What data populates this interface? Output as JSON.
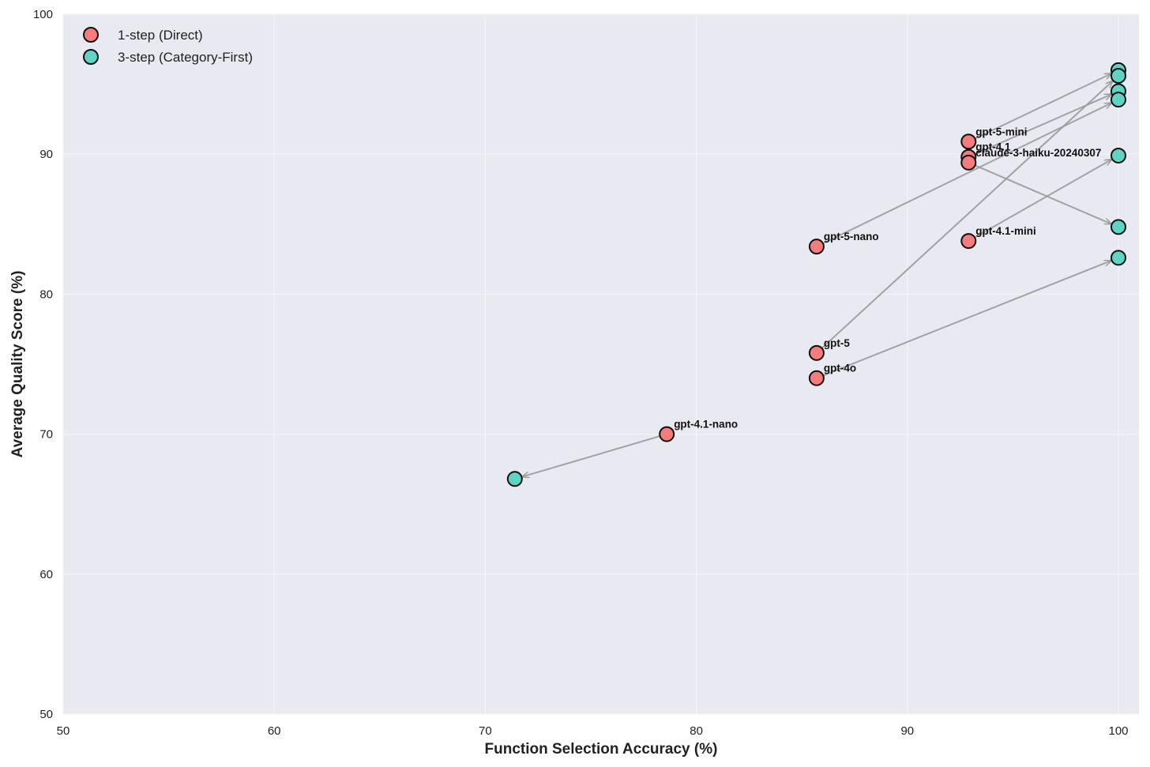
{
  "chart_data": {
    "type": "scatter",
    "title": "",
    "xlabel": "Function Selection Accuracy (%)",
    "ylabel": "Average Quality Score (%)",
    "xlim": [
      50,
      100
    ],
    "ylim": [
      50,
      100
    ],
    "xticks": [
      50,
      60,
      70,
      80,
      90,
      100
    ],
    "yticks": [
      50,
      60,
      70,
      80,
      90,
      100
    ],
    "grid": true,
    "legend_position": "upper left",
    "legend": [
      {
        "label": "1-step (Direct)",
        "color": "#f47c7c"
      },
      {
        "label": "3-step (Category-First)",
        "color": "#5fd3c4"
      }
    ],
    "series": [
      {
        "name": "1-step (Direct)",
        "color": "#f47c7c",
        "points": [
          {
            "model": "gpt-5-mini",
            "x": 92.9,
            "y": 90.9
          },
          {
            "model": "gpt-4.1",
            "x": 92.9,
            "y": 89.8
          },
          {
            "model": "claude-3-haiku-20240307",
            "x": 92.9,
            "y": 89.4
          },
          {
            "model": "gpt-5-nano",
            "x": 85.7,
            "y": 83.4
          },
          {
            "model": "gpt-4.1-mini",
            "x": 92.9,
            "y": 83.8
          },
          {
            "model": "gpt-5",
            "x": 85.7,
            "y": 75.8
          },
          {
            "model": "gpt-4o",
            "x": 85.7,
            "y": 74.0
          },
          {
            "model": "gpt-4.1-nano",
            "x": 78.6,
            "y": 70.0
          }
        ]
      },
      {
        "name": "3-step (Category-First)",
        "color": "#5fd3c4",
        "points": [
          {
            "model": "gpt-5-mini",
            "x": 100,
            "y": 96.0
          },
          {
            "model": "gpt-4.1",
            "x": 100,
            "y": 94.5
          },
          {
            "model": "claude-3-haiku-20240307",
            "x": 100,
            "y": 84.8
          },
          {
            "model": "gpt-5-nano",
            "x": 100,
            "y": 93.9
          },
          {
            "model": "gpt-4.1-mini",
            "x": 100,
            "y": 89.9
          },
          {
            "model": "gpt-5",
            "x": 100,
            "y": 95.6
          },
          {
            "model": "gpt-4o",
            "x": 100,
            "y": 82.6
          },
          {
            "model": "gpt-4.1-nano",
            "x": 71.4,
            "y": 66.8
          }
        ]
      }
    ],
    "annotations": "Gray arrows connect each model's 1-step point to its 3-step point; model names label the 1-step points."
  }
}
